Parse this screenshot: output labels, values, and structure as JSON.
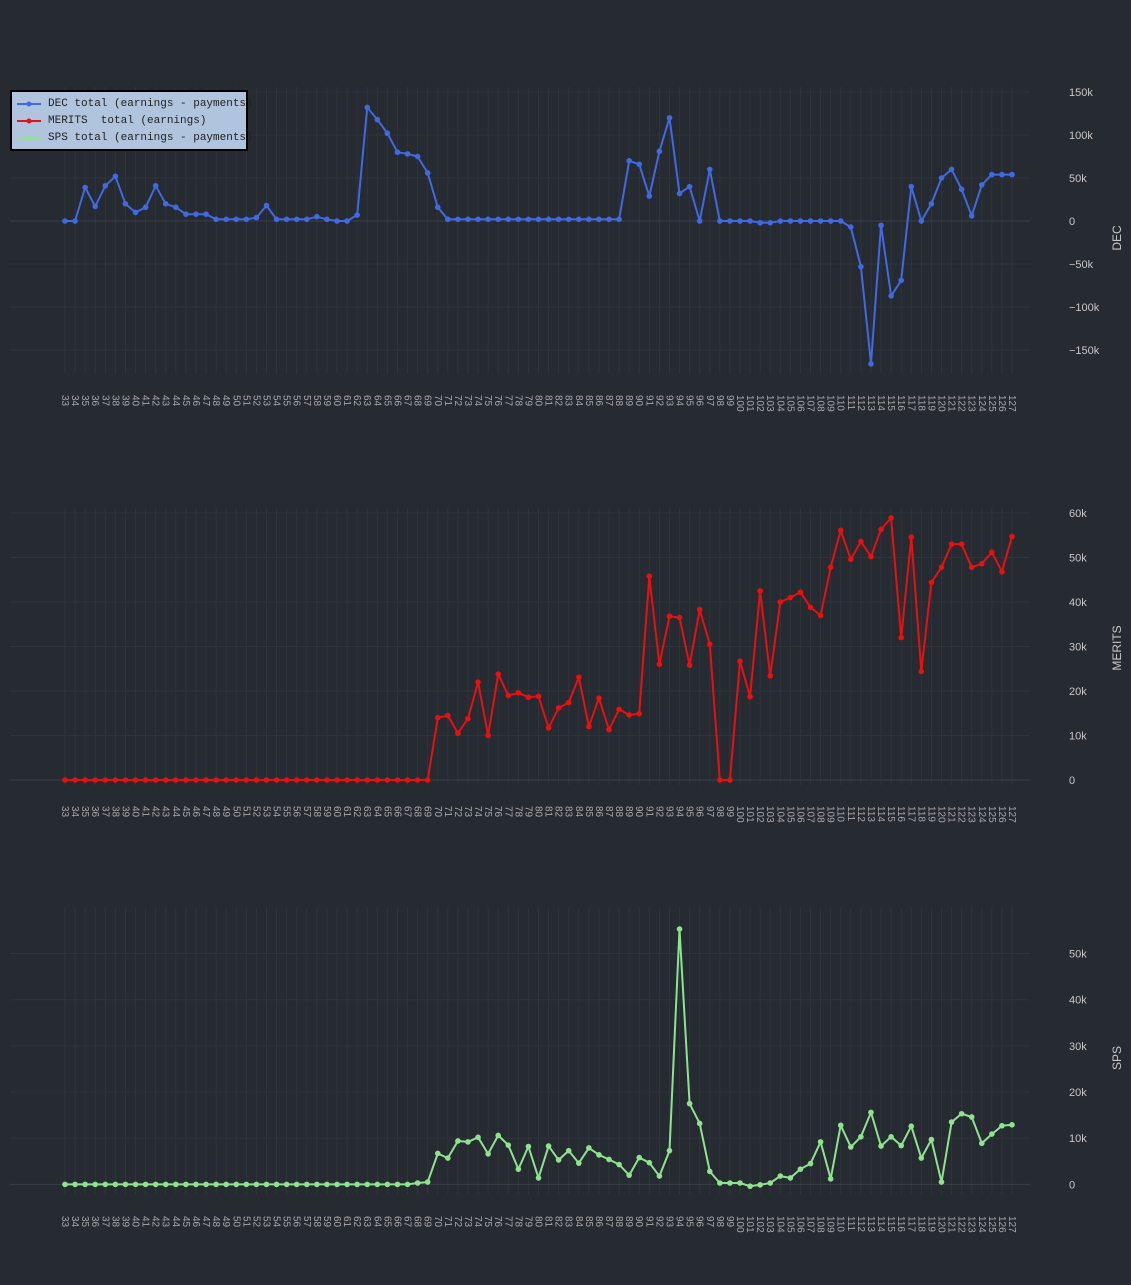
{
  "chart_data": [
    {
      "type": "line",
      "ylabel": "DEC",
      "xlabel": "",
      "color": "#4169e1",
      "yticks": [
        "150k",
        "100k",
        "50k",
        "0",
        "−50k",
        "−100k",
        "−150k"
      ],
      "ytick_values": [
        150000,
        100000,
        50000,
        0,
        -50000,
        -100000,
        -150000
      ],
      "ylim": [
        -172000,
        150000
      ],
      "x": [
        33,
        34,
        35,
        36,
        37,
        38,
        39,
        40,
        41,
        42,
        43,
        44,
        45,
        46,
        47,
        48,
        49,
        50,
        51,
        52,
        53,
        54,
        55,
        56,
        57,
        58,
        59,
        60,
        61,
        62,
        63,
        64,
        65,
        66,
        67,
        68,
        69,
        70,
        71,
        72,
        73,
        74,
        75,
        76,
        77,
        78,
        79,
        80,
        81,
        82,
        83,
        84,
        85,
        86,
        87,
        88,
        89,
        90,
        91,
        92,
        93,
        94,
        95,
        96,
        97,
        98,
        99,
        100,
        101,
        102,
        103,
        104,
        105,
        106,
        107,
        108,
        109,
        110,
        111,
        112,
        113,
        114,
        115,
        116,
        117,
        118,
        119,
        120,
        121,
        122,
        123,
        124,
        125,
        126,
        127
      ],
      "series": [
        {
          "name": "DEC total (earnings - payments)",
          "values": [
            0,
            0,
            39000,
            17000,
            41000,
            52000,
            20000,
            10000,
            16000,
            41000,
            20000,
            16000,
            8000,
            8000,
            8000,
            2000,
            2000,
            2000,
            2000,
            4000,
            18000,
            2000,
            2000,
            2000,
            2000,
            5000,
            2000,
            0,
            0,
            7000,
            132000,
            118000,
            102000,
            80000,
            78000,
            75000,
            56000,
            16000,
            2000,
            2000,
            2000,
            2000,
            2000,
            2000,
            2000,
            2000,
            2000,
            2000,
            2000,
            2000,
            2000,
            2000,
            2000,
            2000,
            2000,
            2000,
            70000,
            66000,
            29000,
            81000,
            120000,
            32000,
            40000,
            0,
            60000,
            0,
            0,
            0,
            0,
            -2000,
            -2000,
            0,
            0,
            0,
            0,
            0,
            0,
            0,
            -7000,
            -53000,
            -166000,
            -5000,
            -87000,
            -69000,
            40000,
            0,
            20000,
            50000,
            60000,
            37000,
            6000,
            42000,
            54000,
            54000,
            54000
          ]
        }
      ]
    },
    {
      "type": "line",
      "ylabel": "MERITS",
      "xlabel": "",
      "color": "#e81010",
      "yticks": [
        "60k",
        "50k",
        "40k",
        "30k",
        "20k",
        "10k",
        "0"
      ],
      "ytick_values": [
        60000,
        50000,
        40000,
        30000,
        20000,
        10000,
        0
      ],
      "ylim": [
        0,
        60000
      ],
      "x": [
        33,
        34,
        35,
        36,
        37,
        38,
        39,
        40,
        41,
        42,
        43,
        44,
        45,
        46,
        47,
        48,
        49,
        50,
        51,
        52,
        53,
        54,
        55,
        56,
        57,
        58,
        59,
        60,
        61,
        62,
        63,
        64,
        65,
        66,
        67,
        68,
        69,
        70,
        71,
        72,
        73,
        74,
        75,
        76,
        77,
        78,
        79,
        80,
        81,
        82,
        83,
        84,
        85,
        86,
        87,
        88,
        89,
        90,
        91,
        92,
        93,
        94,
        95,
        96,
        97,
        98,
        99,
        100,
        101,
        102,
        103,
        104,
        105,
        106,
        107,
        108,
        109,
        110,
        111,
        112,
        113,
        114,
        115,
        116,
        117,
        118,
        119,
        120,
        121,
        122,
        123,
        124,
        125,
        126,
        127
      ],
      "series": [
        {
          "name": "MERITS  total (earnings)",
          "values": [
            0,
            0,
            0,
            0,
            0,
            0,
            0,
            0,
            0,
            0,
            0,
            0,
            0,
            0,
            0,
            0,
            0,
            0,
            0,
            0,
            0,
            0,
            0,
            0,
            0,
            0,
            0,
            0,
            0,
            0,
            0,
            0,
            0,
            0,
            0,
            0,
            0,
            14000,
            14500,
            10500,
            13800,
            22000,
            10000,
            23800,
            19000,
            19600,
            18600,
            18800,
            11700,
            16200,
            17400,
            23100,
            12000,
            18400,
            11300,
            15900,
            14600,
            14900,
            45800,
            26000,
            36800,
            36500,
            25800,
            38300,
            30500,
            0,
            0,
            26700,
            18700,
            42500,
            23400,
            40000,
            41000,
            42200,
            38800,
            37000,
            47800,
            56100,
            49600,
            53600,
            50200,
            56300,
            58900,
            32000,
            54600,
            24400,
            44400,
            47800,
            53000,
            53000,
            47800,
            48600,
            51200,
            46800,
            54700
          ]
        }
      ]
    },
    {
      "type": "line",
      "ylabel": "SPS",
      "xlabel": "",
      "color": "#8fe38f",
      "yticks": [
        "50k",
        "40k",
        "30k",
        "20k",
        "10k",
        "0"
      ],
      "ytick_values": [
        50000,
        40000,
        30000,
        20000,
        10000,
        0
      ],
      "ylim": [
        -1000,
        59000
      ],
      "x": [
        33,
        34,
        35,
        36,
        37,
        38,
        39,
        40,
        41,
        42,
        43,
        44,
        45,
        46,
        47,
        48,
        49,
        50,
        51,
        52,
        53,
        54,
        55,
        56,
        57,
        58,
        59,
        60,
        61,
        62,
        63,
        64,
        65,
        66,
        67,
        68,
        69,
        70,
        71,
        72,
        73,
        74,
        75,
        76,
        77,
        78,
        79,
        80,
        81,
        82,
        83,
        84,
        85,
        86,
        87,
        88,
        89,
        90,
        91,
        92,
        93,
        94,
        95,
        96,
        97,
        98,
        99,
        100,
        101,
        102,
        103,
        104,
        105,
        106,
        107,
        108,
        109,
        110,
        111,
        112,
        113,
        114,
        115,
        116,
        117,
        118,
        119,
        120,
        121,
        122,
        123,
        124,
        125,
        126,
        127
      ],
      "series": [
        {
          "name": "SPS total (earnings - payments)",
          "values": [
            0,
            0,
            0,
            0,
            0,
            0,
            0,
            0,
            0,
            0,
            0,
            0,
            0,
            0,
            0,
            0,
            0,
            0,
            0,
            0,
            0,
            0,
            0,
            0,
            0,
            0,
            0,
            0,
            0,
            0,
            0,
            0,
            0,
            0,
            0,
            300,
            500,
            6700,
            5700,
            9400,
            9200,
            10200,
            6600,
            10600,
            8500,
            3300,
            8200,
            1400,
            8300,
            5300,
            7300,
            4600,
            7900,
            6400,
            5400,
            4300,
            2000,
            5800,
            4700,
            1800,
            7300,
            55300,
            17500,
            13200,
            2800,
            300,
            300,
            300,
            -400,
            -100,
            300,
            1800,
            1400,
            3300,
            4500,
            9200,
            1200,
            12800,
            8100,
            10300,
            15600,
            8300,
            10300,
            8400,
            12600,
            5700,
            9700,
            500,
            13500,
            15300,
            14600,
            8900,
            10900,
            12700,
            12900
          ]
        }
      ]
    }
  ],
  "legend": {
    "entries": [
      {
        "label": "DEC total (earnings - payments)",
        "color": "#4169e1"
      },
      {
        "label": "MERITS  total (earnings)",
        "color": "#e81010"
      },
      {
        "label": "SPS total (earnings - payments)",
        "color": "#8fe38f"
      }
    ],
    "placement": "top-left"
  }
}
